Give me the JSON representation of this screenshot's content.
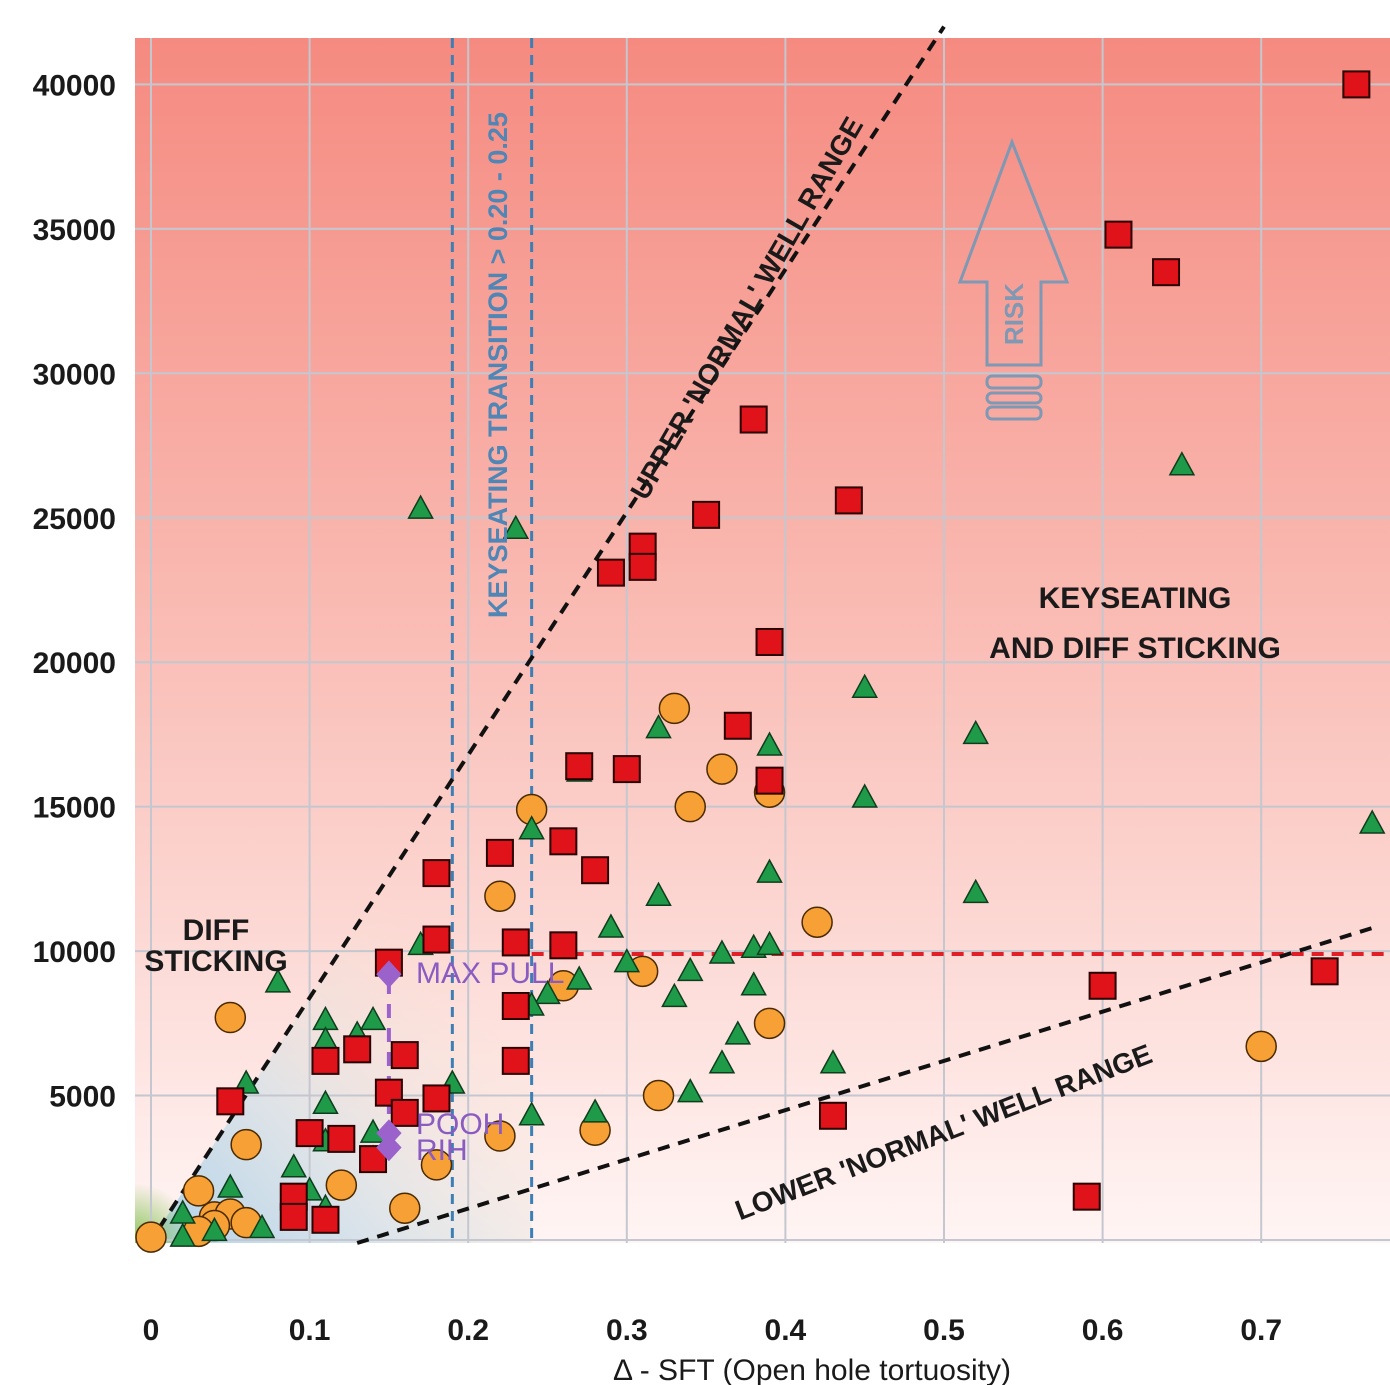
{
  "chart_data": {
    "type": "scatter",
    "xlabel": "Δ - SFT (Open hole tortuosity)",
    "x_ticks": [
      "0",
      "0.1",
      "0.2",
      "0.3",
      "0.4",
      "0.5",
      "0.6",
      "0.7"
    ],
    "y_ticks": [
      "",
      "5000",
      "10000",
      "15000",
      "20000",
      "25000",
      "30000",
      "35000",
      "40000"
    ],
    "xlim": [
      -0.01,
      0.77
    ],
    "ylim": [
      0,
      41600
    ],
    "grid": true,
    "annotations": {
      "transition": "KEYSEATING TRANSITION > 0.20 - 0.25",
      "upper_range": "UPPER 'NORMAL' WELL RANGE",
      "lower_range": "LOWER 'NORMAL' WELL RANGE",
      "zone_keyseating_1": "KEYSEATING",
      "zone_keyseating_2": "AND DIFF STICKING",
      "zone_diff_1": "DIFF",
      "zone_diff_2": "STICKING",
      "risk": "RISK",
      "max_pull": "MAX PULL",
      "pooh": "POOH",
      "rih": "RIH"
    },
    "reference_lines": {
      "max_pull_y": 9900,
      "transition_x": [
        0.19,
        0.24
      ],
      "upper_range": [
        [
          0.005,
          400
        ],
        [
          0.5,
          42000
        ]
      ],
      "lower_range": [
        [
          0.13,
          -200
        ],
        [
          0.77,
          10800
        ]
      ]
    },
    "colors": {
      "square": "#e0121a",
      "triangle": "#1e9a48",
      "circle": "#f7a035",
      "diamond": "#9b62cc",
      "max_pull_line": "#e01f26",
      "transition_line": "#3d7fb5",
      "range_line": "#111111"
    },
    "series": [
      {
        "marker": "square",
        "points": [
          [
            0.76,
            40000
          ],
          [
            0.61,
            34800
          ],
          [
            0.64,
            33500
          ],
          [
            0.38,
            28400
          ],
          [
            0.44,
            25600
          ],
          [
            0.35,
            25100
          ],
          [
            0.31,
            24000
          ],
          [
            0.31,
            23300
          ],
          [
            0.29,
            23100
          ],
          [
            0.39,
            20700
          ],
          [
            0.37,
            17800
          ],
          [
            0.27,
            16400
          ],
          [
            0.3,
            16300
          ],
          [
            0.39,
            15900
          ],
          [
            0.26,
            13800
          ],
          [
            0.28,
            12800
          ],
          [
            0.22,
            13400
          ],
          [
            0.18,
            12700
          ],
          [
            0.18,
            10400
          ],
          [
            0.23,
            10300
          ],
          [
            0.26,
            10200
          ],
          [
            0.15,
            9600
          ],
          [
            0.23,
            8100
          ],
          [
            0.23,
            6200
          ],
          [
            0.16,
            6400
          ],
          [
            0.13,
            6600
          ],
          [
            0.11,
            6200
          ],
          [
            0.05,
            4800
          ],
          [
            0.15,
            5100
          ],
          [
            0.18,
            4900
          ],
          [
            0.16,
            4400
          ],
          [
            0.1,
            3700
          ],
          [
            0.12,
            3500
          ],
          [
            0.14,
            2800
          ],
          [
            0.09,
            1500
          ],
          [
            0.09,
            800
          ],
          [
            0.11,
            700
          ],
          [
            0.43,
            4300
          ],
          [
            0.6,
            8800
          ],
          [
            0.74,
            9300
          ],
          [
            0.59,
            1500
          ]
        ]
      },
      {
        "marker": "triangle",
        "points": [
          [
            0.17,
            25300
          ],
          [
            0.23,
            24600
          ],
          [
            0.65,
            26800
          ],
          [
            0.27,
            16200
          ],
          [
            0.45,
            19100
          ],
          [
            0.32,
            17700
          ],
          [
            0.39,
            17100
          ],
          [
            0.52,
            17500
          ],
          [
            0.45,
            15300
          ],
          [
            0.77,
            14400
          ],
          [
            0.24,
            14200
          ],
          [
            0.39,
            12700
          ],
          [
            0.32,
            11900
          ],
          [
            0.52,
            12000
          ],
          [
            0.29,
            10800
          ],
          [
            0.17,
            10200
          ],
          [
            0.36,
            9900
          ],
          [
            0.38,
            10100
          ],
          [
            0.39,
            10200
          ],
          [
            0.3,
            9600
          ],
          [
            0.27,
            9000
          ],
          [
            0.25,
            8500
          ],
          [
            0.24,
            8100
          ],
          [
            0.34,
            9300
          ],
          [
            0.33,
            8400
          ],
          [
            0.38,
            8800
          ],
          [
            0.37,
            7100
          ],
          [
            0.36,
            6100
          ],
          [
            0.43,
            6100
          ],
          [
            0.34,
            5100
          ],
          [
            0.19,
            5400
          ],
          [
            0.24,
            4300
          ],
          [
            0.28,
            4400
          ],
          [
            0.11,
            7600
          ],
          [
            0.13,
            7100
          ],
          [
            0.14,
            7600
          ],
          [
            0.11,
            6900
          ],
          [
            0.06,
            5400
          ],
          [
            0.08,
            8900
          ],
          [
            0.11,
            4700
          ],
          [
            0.11,
            3400
          ],
          [
            0.14,
            3700
          ],
          [
            0.14,
            2800
          ],
          [
            0.09,
            2500
          ],
          [
            0.1,
            1700
          ],
          [
            0.11,
            1100
          ],
          [
            0.05,
            1800
          ],
          [
            0.02,
            900
          ],
          [
            0.04,
            300
          ],
          [
            0.07,
            400
          ],
          [
            0.02,
            100
          ]
        ]
      },
      {
        "marker": "circle",
        "points": [
          [
            0.33,
            18400
          ],
          [
            0.36,
            16300
          ],
          [
            0.34,
            15000
          ],
          [
            0.39,
            15500
          ],
          [
            0.24,
            14900
          ],
          [
            0.22,
            11900
          ],
          [
            0.42,
            11000
          ],
          [
            0.31,
            9300
          ],
          [
            0.26,
            8800
          ],
          [
            0.39,
            7500
          ],
          [
            0.7,
            6700
          ],
          [
            0.32,
            5000
          ],
          [
            0.05,
            7700
          ],
          [
            0.06,
            3300
          ],
          [
            0.22,
            3600
          ],
          [
            0.28,
            3800
          ],
          [
            0.18,
            2600
          ],
          [
            0.12,
            1900
          ],
          [
            0.16,
            1100
          ],
          [
            0.03,
            1700
          ],
          [
            0.04,
            800
          ],
          [
            0.05,
            900
          ],
          [
            0.06,
            600
          ],
          [
            0.04,
            500
          ],
          [
            0.03,
            300
          ],
          [
            0.0,
            100
          ]
        ]
      },
      {
        "marker": "diamond",
        "points": [
          [
            0.15,
            9200
          ],
          [
            0.15,
            3700
          ],
          [
            0.15,
            3200
          ]
        ]
      }
    ]
  }
}
